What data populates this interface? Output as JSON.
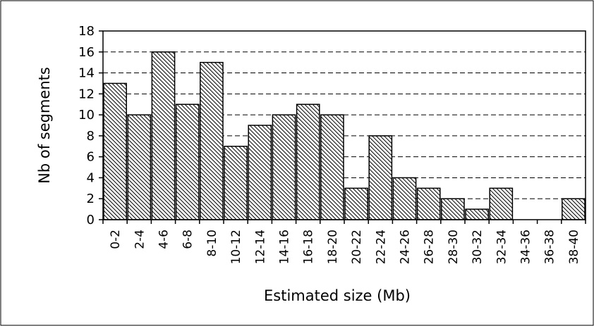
{
  "chart_data": {
    "type": "bar",
    "xlabel": "Estimated size (Mb)",
    "ylabel": "Nb of segments",
    "ylim": [
      0,
      18
    ],
    "yticks": [
      0,
      2,
      4,
      6,
      8,
      10,
      12,
      14,
      16,
      18
    ],
    "grid": "horizontal dashed",
    "legend": "none",
    "bar_fill": "diagonal hatch",
    "categories": [
      "0-2",
      "2-4",
      "4-6",
      "6-8",
      "8-10",
      "10-12",
      "12-14",
      "14-16",
      "16-18",
      "18-20",
      "20-22",
      "22-24",
      "24-26",
      "26-28",
      "28-30",
      "30-32",
      "32-34",
      "34-36",
      "36-38",
      "38-40"
    ],
    "values": [
      13,
      10,
      16,
      11,
      15,
      7,
      9,
      10,
      11,
      10,
      3,
      8,
      4,
      3,
      2,
      1,
      3,
      0,
      0,
      2
    ],
    "colors": {
      "bar_stroke": "#000000",
      "hatch": "#000000",
      "background": "#ffffff",
      "grid": "#000000"
    }
  }
}
